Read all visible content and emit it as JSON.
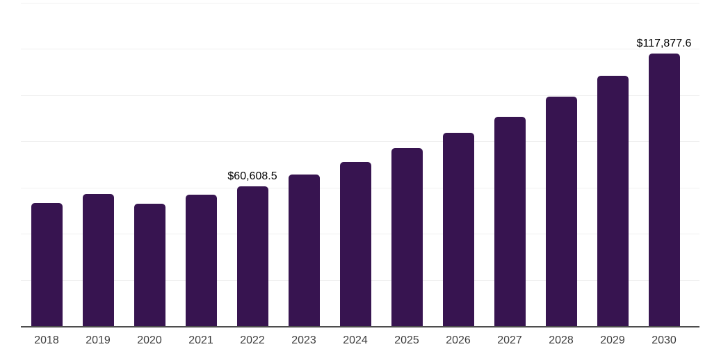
{
  "chart_data": {
    "type": "bar",
    "title": "",
    "xlabel": "",
    "ylabel": "",
    "categories": [
      "2018",
      "2019",
      "2020",
      "2021",
      "2022",
      "2023",
      "2024",
      "2025",
      "2026",
      "2027",
      "2028",
      "2029",
      "2030"
    ],
    "values": [
      53200,
      57200,
      53000,
      56900,
      60608.5,
      65700,
      71100,
      77200,
      83800,
      90700,
      99400,
      108400,
      117877.6
    ],
    "data_labels": [
      null,
      null,
      null,
      null,
      "$60,608.5",
      null,
      null,
      null,
      null,
      null,
      null,
      null,
      "$117,877.6"
    ],
    "ylim": [
      0,
      140000
    ],
    "gridline_step": 20000,
    "grid": "horizontal-only",
    "legend": "none"
  },
  "style": {
    "bar_color": "#371450",
    "axis_color": "#4d4d4d",
    "grid_color": "#f0f0f0",
    "tick_color": "#3e3e3e",
    "data_label_color": "#000000",
    "background": "#ffffff"
  }
}
